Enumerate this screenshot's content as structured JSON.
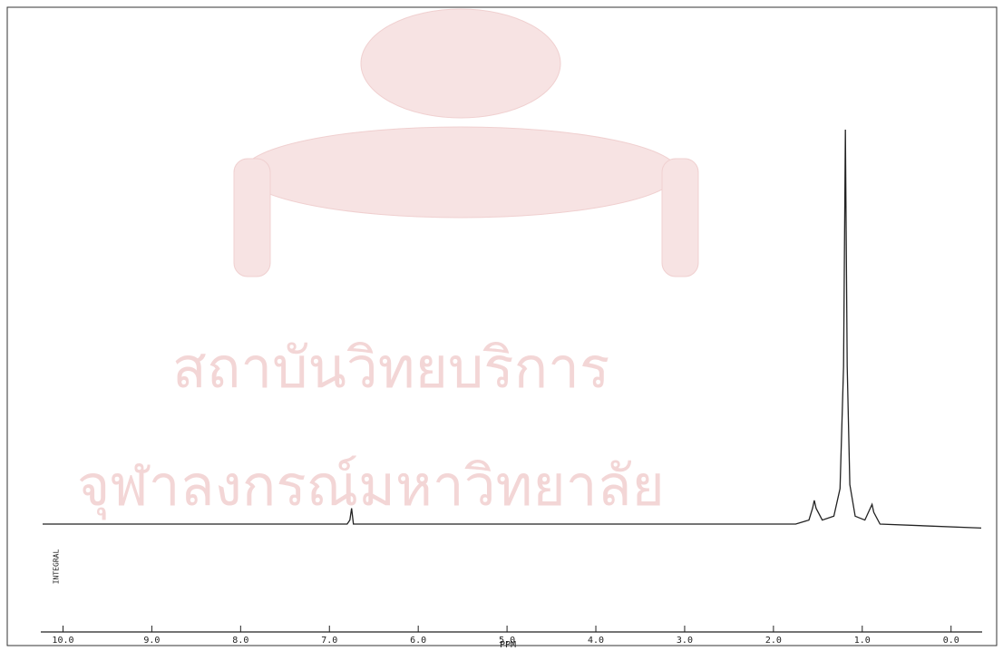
{
  "chart_data": {
    "type": "line",
    "x_label": "PPM",
    "side_label": "INTEGRAL",
    "watermark": [
      "สถาบันวิทยบริการ",
      "จุฬาลงกรณ์มหาวิทยาลัย"
    ],
    "x": [
      10.23,
      6.8,
      6.77,
      6.75,
      6.73,
      1.75,
      1.6,
      1.56,
      1.54,
      1.52,
      1.45,
      1.32,
      1.25,
      1.21,
      1.19,
      1.17,
      1.14,
      1.08,
      0.97,
      0.91,
      0.89,
      0.87,
      0.8,
      -0.34
    ],
    "values": [
      0,
      0,
      1,
      4,
      0,
      0,
      1,
      4,
      6,
      4,
      1,
      2,
      9,
      40,
      100,
      40,
      10,
      2,
      1,
      4,
      5,
      3,
      0,
      -1
    ],
    "color": "#222222",
    "xlim": [
      10.25,
      -0.35
    ],
    "ylim": [
      0,
      100
    ],
    "xticks": [
      {
        "value": 10,
        "label": "10.0"
      },
      {
        "value": 9,
        "label": "9.0"
      },
      {
        "value": 8,
        "label": "8.0"
      },
      {
        "value": 7,
        "label": "7.0"
      },
      {
        "value": 6,
        "label": "6.0"
      },
      {
        "value": 5,
        "label": "5.0"
      },
      {
        "value": 4,
        "label": "4.0"
      },
      {
        "value": 3,
        "label": "3.0"
      },
      {
        "value": 2,
        "label": "2.0"
      },
      {
        "value": 1,
        "label": "1.0"
      },
      {
        "value": 0,
        "label": "0.0"
      }
    ]
  }
}
